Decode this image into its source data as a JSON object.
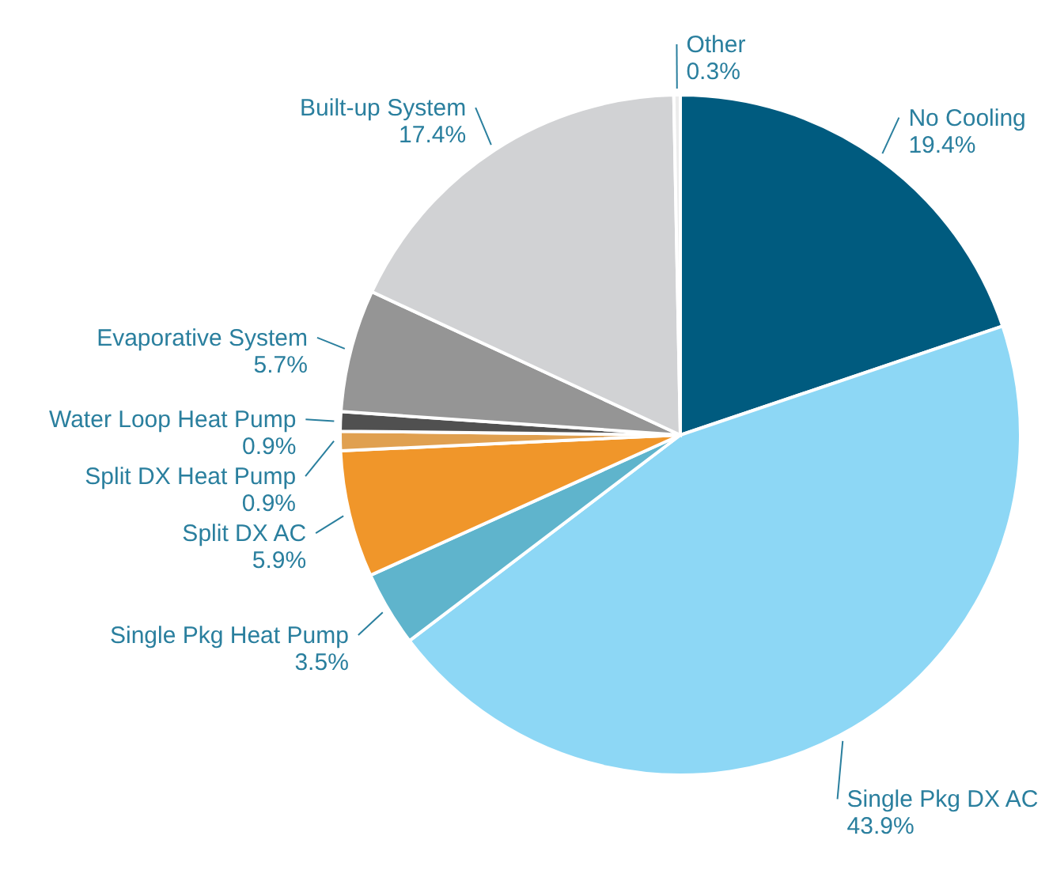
{
  "chart_data": {
    "type": "pie",
    "categories": [
      "No Cooling",
      "Single Pkg DX AC",
      "Single Pkg Heat Pump",
      "Split DX AC",
      "Split DX Heat Pump",
      "Water Loop Heat Pump",
      "Evaporative System",
      "Built-up System",
      "Other"
    ],
    "values": [
      19.4,
      43.9,
      3.5,
      5.9,
      0.9,
      0.9,
      5.7,
      17.4,
      0.3
    ],
    "value_labels": [
      "19.4%",
      "43.9%",
      "3.5%",
      "5.9%",
      "0.9%",
      "0.9%",
      "5.7%",
      "17.4%",
      "0.3%"
    ],
    "colors": [
      "#005b7f",
      "#8dd7f5",
      "#5fb4cc",
      "#f0962a",
      "#e0a050",
      "#505050",
      "#959595",
      "#d1d2d4",
      "#ececec"
    ]
  }
}
